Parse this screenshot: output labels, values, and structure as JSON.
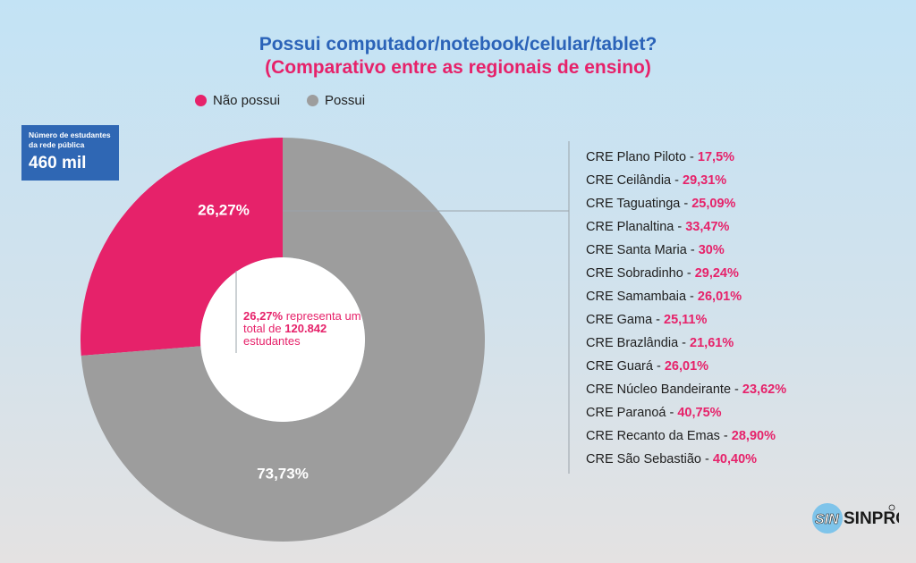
{
  "title_line1": "Possui computador/notebook/celular/tablet?",
  "title_line2": "(Comparativo entre as regionais de ensino)",
  "legend": [
    {
      "label": "Não possui",
      "color": "#e6226a"
    },
    {
      "label": "Possui",
      "color": "#9d9d9d"
    }
  ],
  "info_box": {
    "label": "Número de estudantes da rede pública",
    "value": "460 mil"
  },
  "center_note": {
    "pct": "26,27%",
    "text1": " representa um total de ",
    "count": "120.842",
    "text2": " estudantes"
  },
  "chart_data": {
    "type": "pie",
    "donut": true,
    "slices": [
      {
        "label": "Não possui",
        "value": 26.27,
        "display": "26,27%",
        "color": "#e6226a"
      },
      {
        "label": "Possui",
        "value": 73.73,
        "display": "73,73%",
        "color": "#9d9d9d"
      }
    ]
  },
  "regionals": [
    {
      "name": "CRE Plano Piloto - ",
      "pct": "17,5%"
    },
    {
      "name": "CRE Ceilândia - ",
      "pct": "29,31%"
    },
    {
      "name": "CRE Taguatinga - ",
      "pct": "25,09%"
    },
    {
      "name": "CRE Planaltina - ",
      "pct": "33,47%"
    },
    {
      "name": "CRE Santa Maria - ",
      "pct": "30%"
    },
    {
      "name": "CRE Sobradinho - ",
      "pct": "29,24%"
    },
    {
      "name": "CRE Samambaia - ",
      "pct": "26,01%"
    },
    {
      "name": "CRE Gama - ",
      "pct": "25,11%"
    },
    {
      "name": "CRE Brazlândia - ",
      "pct": "21,61%"
    },
    {
      "name": "CRE Guará - ",
      "pct": "26,01%"
    },
    {
      "name": "CRE Núcleo Bandeirante - ",
      "pct": "23,62%"
    },
    {
      "name": "CRE Paranoá - ",
      "pct": "40,75%"
    },
    {
      "name": "CRE Recanto da Emas - ",
      "pct": "28,90%"
    },
    {
      "name": "CRE São Sebastião - ",
      "pct": "40,40%"
    }
  ],
  "logo": {
    "text": "SINPRO"
  }
}
